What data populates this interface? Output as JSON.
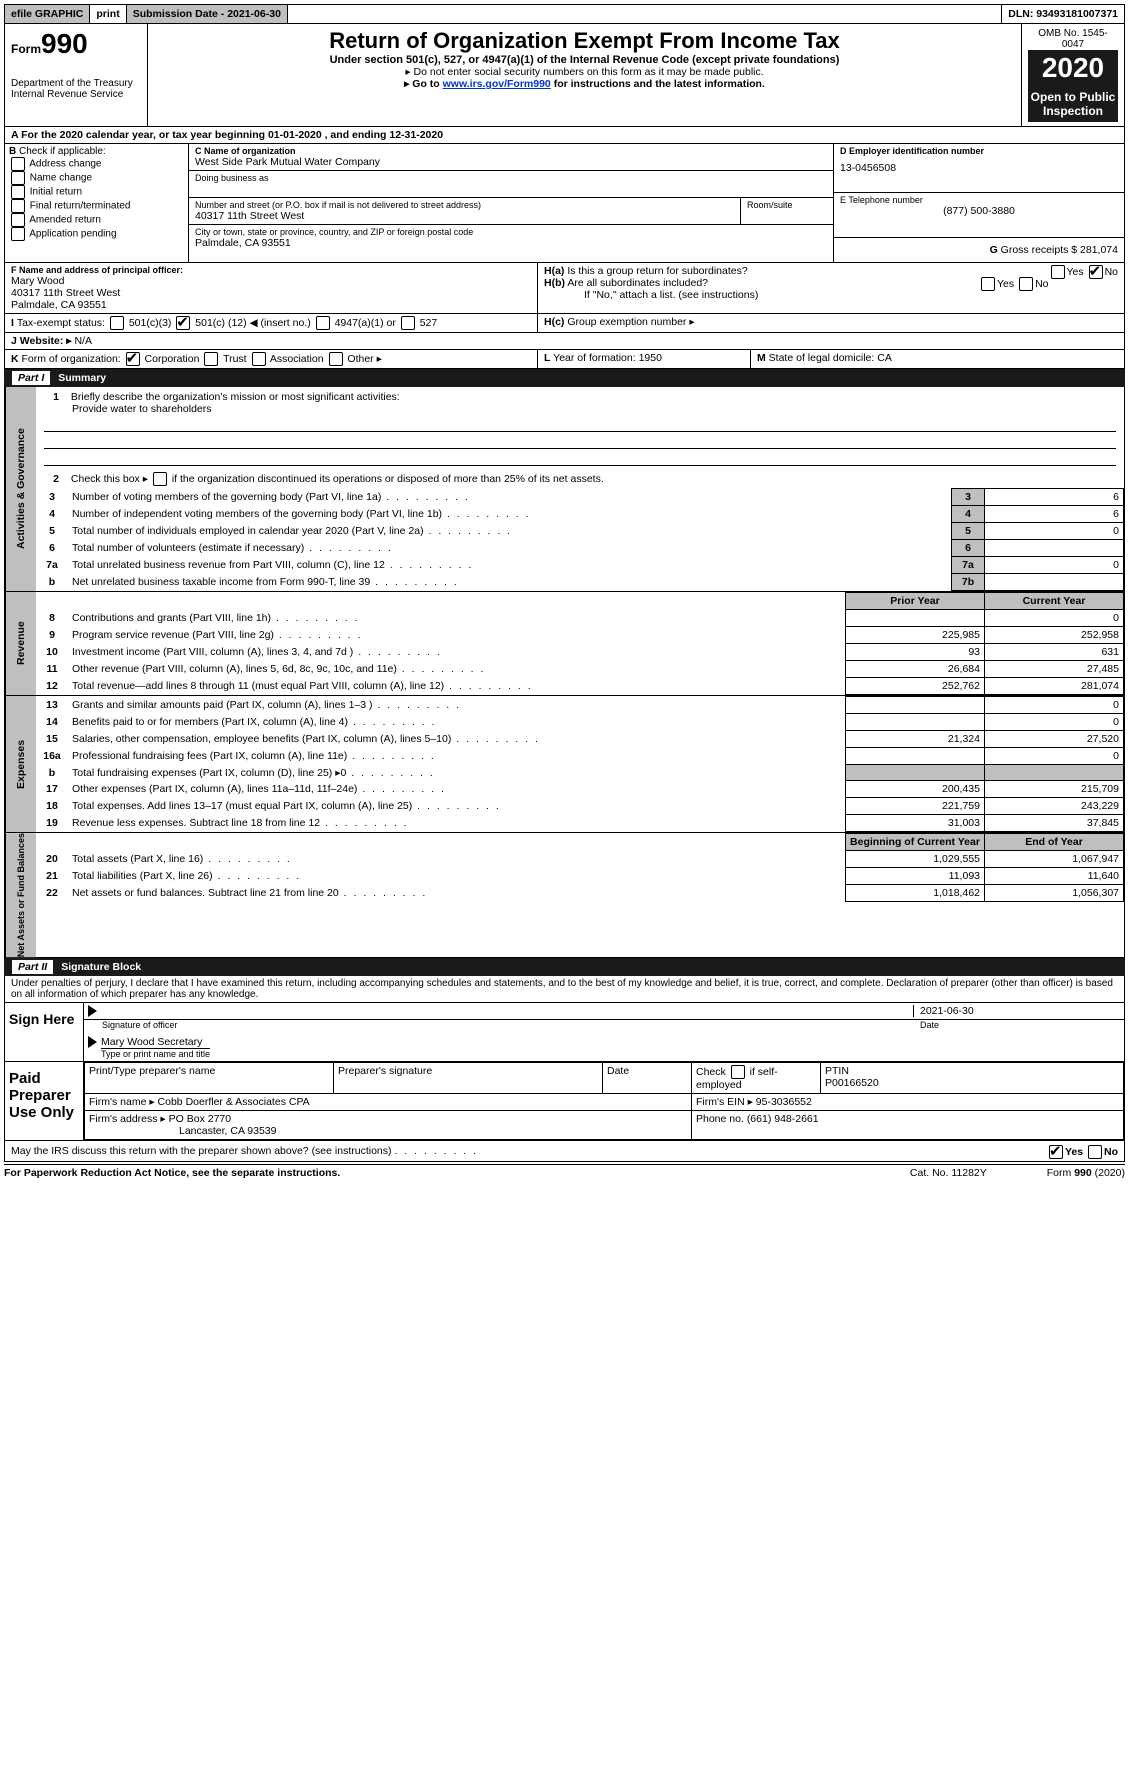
{
  "top": {
    "efile": "efile GRAPHIC",
    "print": "print",
    "subdate_label": "Submission Date - 2021-06-30",
    "dln": "DLN: 93493181007371"
  },
  "header": {
    "form_prefix": "Form",
    "form_no": "990",
    "title": "Return of Organization Exempt From Income Tax",
    "subtitle": "Under section 501(c), 527, or 4947(a)(1) of the Internal Revenue Code (except private foundations)",
    "warn": "▸ Do not enter social security numbers on this form as it may be made public.",
    "goto_pre": "▸ Go to ",
    "goto_link": "www.irs.gov/Form990",
    "goto_post": " for instructions and the latest information.",
    "dept": "Department of the Treasury\nInternal Revenue Service",
    "omb": "OMB No. 1545-0047",
    "year": "2020",
    "open": "Open to Public Inspection"
  },
  "periodA": "For the 2020 calendar year, or tax year beginning 01-01-2020    , and ending 12-31-2020",
  "B": {
    "label": "Check if applicable:",
    "opts": [
      "Address change",
      "Name change",
      "Initial return",
      "Final return/terminated",
      "Amended return",
      "Application pending"
    ]
  },
  "C": {
    "label": "C Name of organization",
    "name": "West Side Park Mutual Water Company",
    "dba": "Doing business as",
    "addr_label": "Number and street (or P.O. box if mail is not delivered to street address)",
    "room": "Room/suite",
    "addr": "40317 11th Street West",
    "city_label": "City or town, state or province, country, and ZIP or foreign postal code",
    "city": "Palmdale, CA  93551"
  },
  "D": {
    "label": "D Employer identification number",
    "value": "13-0456508"
  },
  "E": {
    "label": "E Telephone number",
    "value": "(877) 500-3880"
  },
  "G": {
    "label": "G",
    "text": "Gross receipts $ 281,074"
  },
  "F": {
    "label": "F  Name and address of principal officer:",
    "name": "Mary Wood",
    "addr1": "40317 11th Street West",
    "addr2": "Palmdale, CA  93551"
  },
  "H": {
    "a": "Is this a group return for subordinates?",
    "b": "Are all subordinates included?",
    "b_note": "If \"No,\" attach a list. (see instructions)",
    "c": "Group exemption number ▸",
    "yes": "Yes",
    "no": "No"
  },
  "I": {
    "label": "Tax-exempt status:",
    "opt1": "501(c)(3)",
    "opt2_pre": "501(c) (",
    "opt2_val": "12",
    "opt2_post": ") ◀ (insert no.)",
    "opt3": "4947(a)(1) or",
    "opt4": "527"
  },
  "J": {
    "label": "Website: ▸",
    "value": "N/A"
  },
  "K": {
    "label": "Form of organization:",
    "opts": [
      "Corporation",
      "Trust",
      "Association",
      "Other ▸"
    ]
  },
  "L": {
    "label": "Year of formation:",
    "value": "1950"
  },
  "M": {
    "label": "State of legal domicile:",
    "value": "CA"
  },
  "part1": {
    "title": "Summary",
    "q1": "Briefly describe the organization's mission or most significant activities:",
    "q1_ans": "Provide water to shareholders",
    "q2": "Check this box ▸        if the organization discontinued its operations or disposed of more than 25% of its net assets.",
    "rows": [
      {
        "n": "3",
        "t": "Number of voting members of the governing body (Part VI, line 1a)",
        "b": "3",
        "v": "6"
      },
      {
        "n": "4",
        "t": "Number of independent voting members of the governing body (Part VI, line 1b)",
        "b": "4",
        "v": "6"
      },
      {
        "n": "5",
        "t": "Total number of individuals employed in calendar year 2020 (Part V, line 2a)",
        "b": "5",
        "v": "0"
      },
      {
        "n": "6",
        "t": "Total number of volunteers (estimate if necessary)",
        "b": "6",
        "v": ""
      },
      {
        "n": "7a",
        "t": "Total unrelated business revenue from Part VIII, column (C), line 12",
        "b": "7a",
        "v": "0"
      },
      {
        "n": "b",
        "t": "Net unrelated business taxable income from Form 990-T, line 39",
        "b": "7b",
        "v": ""
      }
    ],
    "prior": "Prior Year",
    "current": "Current Year",
    "revenue": [
      {
        "n": "8",
        "t": "Contributions and grants (Part VIII, line 1h)",
        "p": "",
        "c": "0"
      },
      {
        "n": "9",
        "t": "Program service revenue (Part VIII, line 2g)",
        "p": "225,985",
        "c": "252,958"
      },
      {
        "n": "10",
        "t": "Investment income (Part VIII, column (A), lines 3, 4, and 7d )",
        "p": "93",
        "c": "631"
      },
      {
        "n": "11",
        "t": "Other revenue (Part VIII, column (A), lines 5, 6d, 8c, 9c, 10c, and 11e)",
        "p": "26,684",
        "c": "27,485"
      },
      {
        "n": "12",
        "t": "Total revenue—add lines 8 through 11 (must equal Part VIII, column (A), line 12)",
        "p": "252,762",
        "c": "281,074"
      }
    ],
    "expenses": [
      {
        "n": "13",
        "t": "Grants and similar amounts paid (Part IX, column (A), lines 1–3 )",
        "p": "",
        "c": "0"
      },
      {
        "n": "14",
        "t": "Benefits paid to or for members (Part IX, column (A), line 4)",
        "p": "",
        "c": "0"
      },
      {
        "n": "15",
        "t": "Salaries, other compensation, employee benefits (Part IX, column (A), lines 5–10)",
        "p": "21,324",
        "c": "27,520"
      },
      {
        "n": "16a",
        "t": "Professional fundraising fees (Part IX, column (A), line 11e)",
        "p": "",
        "c": "0"
      },
      {
        "n": "b",
        "t": "Total fundraising expenses (Part IX, column (D), line 25) ▸0",
        "p": "grey",
        "c": "grey"
      },
      {
        "n": "17",
        "t": "Other expenses (Part IX, column (A), lines 11a–11d, 11f–24e)",
        "p": "200,435",
        "c": "215,709"
      },
      {
        "n": "18",
        "t": "Total expenses. Add lines 13–17 (must equal Part IX, column (A), line 25)",
        "p": "221,759",
        "c": "243,229"
      },
      {
        "n": "19",
        "t": "Revenue less expenses. Subtract line 18 from line 12",
        "p": "31,003",
        "c": "37,845"
      }
    ],
    "boy": "Beginning of Current Year",
    "eoy": "End of Year",
    "netassets": [
      {
        "n": "20",
        "t": "Total assets (Part X, line 16)",
        "p": "1,029,555",
        "c": "1,067,947"
      },
      {
        "n": "21",
        "t": "Total liabilities (Part X, line 26)",
        "p": "11,093",
        "c": "11,640"
      },
      {
        "n": "22",
        "t": "Net assets or fund balances. Subtract line 21 from line 20",
        "p": "1,018,462",
        "c": "1,056,307"
      }
    ]
  },
  "side": {
    "gov": "Activities & Governance",
    "rev": "Revenue",
    "exp": "Expenses",
    "net": "Net Assets or Fund Balances"
  },
  "part2": {
    "title": "Signature Block",
    "perjury": "Under penalties of perjury, I declare that I have examined this return, including accompanying schedules and statements, and to the best of my knowledge and belief, it is true, correct, and complete. Declaration of preparer (other than officer) is based on all information of which preparer has any knowledge.",
    "sign_here": "Sign Here",
    "date": "2021-06-30",
    "sig_officer": "Signature of officer",
    "date_lbl": "Date",
    "officer": "Mary Wood  Secretary",
    "type_name": "Type or print name and title",
    "paid": "Paid Preparer Use Only",
    "prep_name_lbl": "Print/Type preparer's name",
    "prep_sig_lbl": "Preparer's signature",
    "prep_date": "Date",
    "self": "Check        if self-employed",
    "ptin_lbl": "PTIN",
    "ptin": "P00166520",
    "firm_name_lbl": "Firm's name   ▸",
    "firm_name": "Cobb Doerfler & Associates CPA",
    "firm_ein_lbl": "Firm's EIN ▸",
    "firm_ein": "95-3036552",
    "firm_addr_lbl": "Firm's address ▸",
    "firm_addr": "PO Box 2770",
    "firm_city": "Lancaster, CA  93539",
    "phone_lbl": "Phone no.",
    "phone": "(661) 948-2661",
    "discuss": "May the IRS discuss this return with the preparer shown above? (see instructions)"
  },
  "footer": {
    "pra": "For Paperwork Reduction Act Notice, see the separate instructions.",
    "cat": "Cat. No. 11282Y",
    "form": "Form 990 (2020)"
  }
}
